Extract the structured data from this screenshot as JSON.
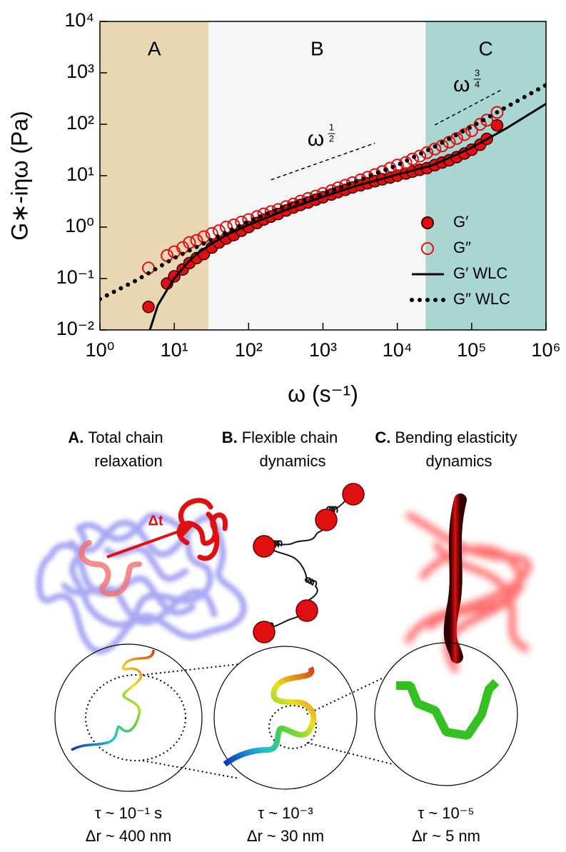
{
  "chart_data": {
    "type": "scatter",
    "xlabel": "ω (s⁻¹)",
    "ylabel": "G∗-iηω (Pa)",
    "xscale": "log",
    "yscale": "log",
    "xlim": [
      1,
      1000000
    ],
    "ylim": [
      0.01,
      10000
    ],
    "xticks": [
      {
        "value": 1,
        "label": "10⁰"
      },
      {
        "value": 10,
        "label": "10¹"
      },
      {
        "value": 100,
        "label": "10²"
      },
      {
        "value": 1000,
        "label": "10³"
      },
      {
        "value": 10000,
        "label": "10⁴"
      },
      {
        "value": 100000,
        "label": "10⁵"
      },
      {
        "value": 1000000,
        "label": "10⁶"
      }
    ],
    "yticks": [
      {
        "value": 0.01,
        "label": "10⁻²"
      },
      {
        "value": 0.1,
        "label": "10⁻¹"
      },
      {
        "value": 1,
        "label": "10⁰"
      },
      {
        "value": 10,
        "label": "10¹"
      },
      {
        "value": 100,
        "label": "10²"
      },
      {
        "value": 1000,
        "label": "10³"
      },
      {
        "value": 10000,
        "label": "10⁴"
      }
    ],
    "regions": [
      {
        "label": "A",
        "range": [
          1,
          29
        ],
        "color": "#e9d6b2"
      },
      {
        "label": "B",
        "range": [
          29,
          24000
        ],
        "color": "#f6f6f6"
      },
      {
        "label": "C",
        "range": [
          24000,
          1000000
        ],
        "color": "#a9d6d1"
      }
    ],
    "annotations": [
      {
        "base": "ω",
        "numerator": "1",
        "denominator": "2",
        "x": [
          200,
          5000
        ],
        "y": [
          8.3,
          43
        ]
      },
      {
        "base": "ω",
        "numerator": "3",
        "denominator": "4",
        "x": [
          32000,
          260000
        ],
        "y": [
          97,
          480
        ]
      }
    ],
    "legend": "lower right",
    "series": [
      {
        "name": "G′",
        "style": "filled-circle",
        "color": "#e01010",
        "x": [
          4.5,
          8,
          10,
          13,
          16,
          20,
          25,
          32,
          40,
          50,
          63,
          80,
          100,
          130,
          160,
          200,
          250,
          320,
          400,
          500,
          630,
          800,
          1000,
          1300,
          1600,
          2000,
          2500,
          3200,
          4000,
          5000,
          6300,
          8000,
          10000,
          13000,
          16000,
          20000,
          25000,
          32000,
          40000,
          50000,
          63000,
          80000,
          100000,
          130000,
          160000,
          220000
        ],
        "values": [
          0.028,
          0.08,
          0.11,
          0.15,
          0.2,
          0.25,
          0.3,
          0.4,
          0.5,
          0.6,
          0.7,
          0.85,
          1.0,
          1.2,
          1.4,
          1.6,
          1.8,
          2.1,
          2.4,
          2.7,
          3.0,
          3.4,
          3.8,
          4.3,
          4.8,
          5.3,
          5.9,
          6.5,
          7.1,
          7.8,
          8.5,
          9.2,
          10,
          11,
          12,
          13,
          14,
          16,
          18,
          20,
          23,
          27,
          32,
          40,
          52,
          95
        ]
      },
      {
        "name": "G″",
        "style": "open-circle",
        "color": "#e01010",
        "x": [
          4.5,
          8,
          10,
          13,
          16,
          20,
          25,
          32,
          40,
          50,
          63,
          80,
          100,
          130,
          160,
          200,
          250,
          320,
          400,
          500,
          630,
          800,
          1000,
          1300,
          1600,
          2000,
          2500,
          3200,
          4000,
          5000,
          6300,
          8000,
          10000,
          13000,
          16000,
          20000,
          25000,
          32000,
          40000,
          50000,
          63000,
          80000,
          100000,
          130000,
          160000,
          220000
        ],
        "values": [
          0.16,
          0.28,
          0.33,
          0.4,
          0.5,
          0.55,
          0.65,
          0.75,
          0.85,
          1.0,
          1.1,
          1.25,
          1.4,
          1.6,
          1.8,
          2.0,
          2.2,
          2.5,
          2.8,
          3.2,
          3.6,
          4.0,
          4.5,
          5.1,
          5.8,
          6.5,
          7.3,
          8.3,
          9.3,
          10.5,
          12,
          14,
          16,
          18,
          21,
          24,
          28,
          33,
          38,
          45,
          53,
          63,
          75,
          100,
          120,
          170
        ]
      },
      {
        "name": "G′ WLC",
        "style": "solid-line",
        "color": "#000000",
        "x": [
          4.7,
          6,
          8,
          10,
          15,
          20,
          30,
          50,
          100,
          300,
          1000,
          3000,
          10000,
          30000,
          100000,
          300000,
          1000000
        ],
        "values": [
          0.01,
          0.03,
          0.06,
          0.1,
          0.2,
          0.3,
          0.45,
          0.7,
          1.1,
          2.1,
          3.9,
          6.5,
          10.5,
          16,
          35,
          85,
          250
        ]
      },
      {
        "name": "G″ WLC",
        "style": "dotted-line",
        "color": "#000000",
        "x": [
          1,
          3,
          10,
          30,
          100,
          300,
          1000,
          3000,
          10000,
          30000,
          100000,
          300000,
          1000000
        ],
        "values": [
          0.04,
          0.09,
          0.25,
          0.55,
          1.3,
          2.5,
          4.5,
          8,
          16,
          35,
          90,
          220,
          580
        ]
      }
    ]
  },
  "illustration": {
    "arrow_label": "Δt",
    "panels": [
      {
        "letter": "A.",
        "title": [
          "Total chain",
          "relaxation"
        ],
        "caption": [
          "τ ~ 10⁻¹ s",
          "Δr ~ 400 nm"
        ]
      },
      {
        "letter": "B.",
        "title": [
          "Flexible chain",
          "dynamics"
        ],
        "caption": [
          "τ ~ 10⁻³",
          "Δr ~ 30 nm"
        ]
      },
      {
        "letter": "C.",
        "title": [
          "Bending elasticity",
          "dynamics"
        ],
        "caption": [
          "τ ~ 10⁻⁵",
          "Δr ~ 5 nm"
        ]
      }
    ]
  }
}
